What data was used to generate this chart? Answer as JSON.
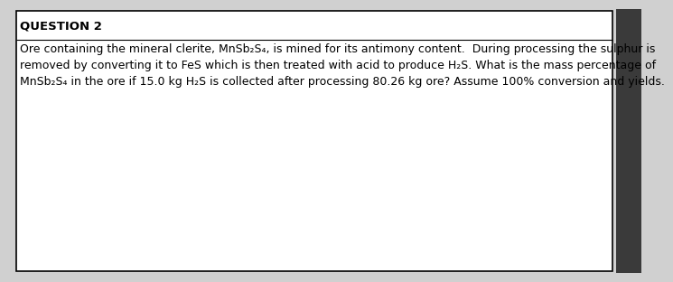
{
  "title": "QUESTION 2",
  "line1": "Ore containing the mineral clerite, MnSb₂S₄, is mined for its antimony content.  During processing the sulphur is",
  "line2": "removed by converting it to FeS which is then treated with acid to produce H₂S. What is the mass percentage of",
  "line3": "MnSb₂S₄ in the ore if 15.0 kg H₂S is collected after processing 80.26 kg ore? Assume 100% conversion and yields.",
  "bg_color": "#ffffff",
  "text_color": "#000000",
  "box_edge_color": "#000000",
  "title_fontsize": 9.5,
  "body_fontsize": 9.0,
  "outer_bg": "#d0d0d0",
  "right_strip_color": "#3a3a3a"
}
